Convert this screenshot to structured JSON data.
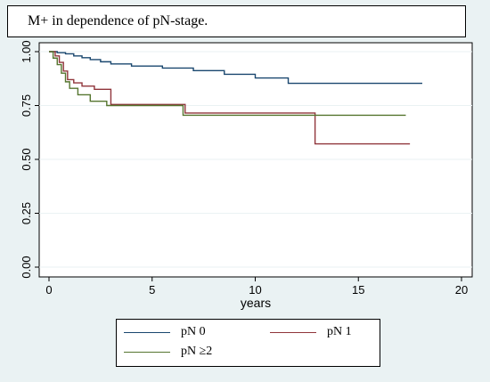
{
  "chart_data": {
    "type": "line",
    "title": "M+ in dependence of pN-stage.",
    "xlabel": "years",
    "ylabel": "",
    "xlim": [
      0,
      20
    ],
    "ylim": [
      0,
      1
    ],
    "x_ticks": [
      "0",
      "5",
      "10",
      "15",
      "20"
    ],
    "y_ticks": [
      "0.00",
      "0.25",
      "0.50",
      "0.75",
      "1.00"
    ],
    "grid": true,
    "legend_position": "bottom",
    "series": [
      {
        "name": "pN 0",
        "color": "#1a476f",
        "step": true,
        "x": [
          0,
          0.4,
          0.8,
          1.2,
          1.6,
          2.0,
          2.5,
          3.0,
          4.0,
          5.5,
          7.0,
          8.5,
          10.0,
          11.6,
          18.1
        ],
        "y": [
          1.0,
          0.995,
          0.99,
          0.98,
          0.972,
          0.963,
          0.953,
          0.943,
          0.933,
          0.924,
          0.912,
          0.895,
          0.878,
          0.853,
          0.853
        ]
      },
      {
        "name": "pN 1",
        "color": "#90353b",
        "step": true,
        "x": [
          0,
          0.3,
          0.5,
          0.7,
          0.9,
          1.2,
          1.6,
          2.2,
          3.0,
          6.6,
          12.9,
          17.5
        ],
        "y": [
          1.0,
          0.98,
          0.95,
          0.91,
          0.87,
          0.855,
          0.84,
          0.825,
          0.755,
          0.715,
          0.572,
          0.572
        ]
      },
      {
        "name": "pN ≥2",
        "color": "#55752f",
        "step": true,
        "x": [
          0,
          0.2,
          0.4,
          0.6,
          0.8,
          1.0,
          1.4,
          2.0,
          2.8,
          6.5,
          17.3
        ],
        "y": [
          1.0,
          0.97,
          0.94,
          0.9,
          0.86,
          0.83,
          0.8,
          0.77,
          0.75,
          0.705,
          0.705
        ]
      }
    ]
  }
}
